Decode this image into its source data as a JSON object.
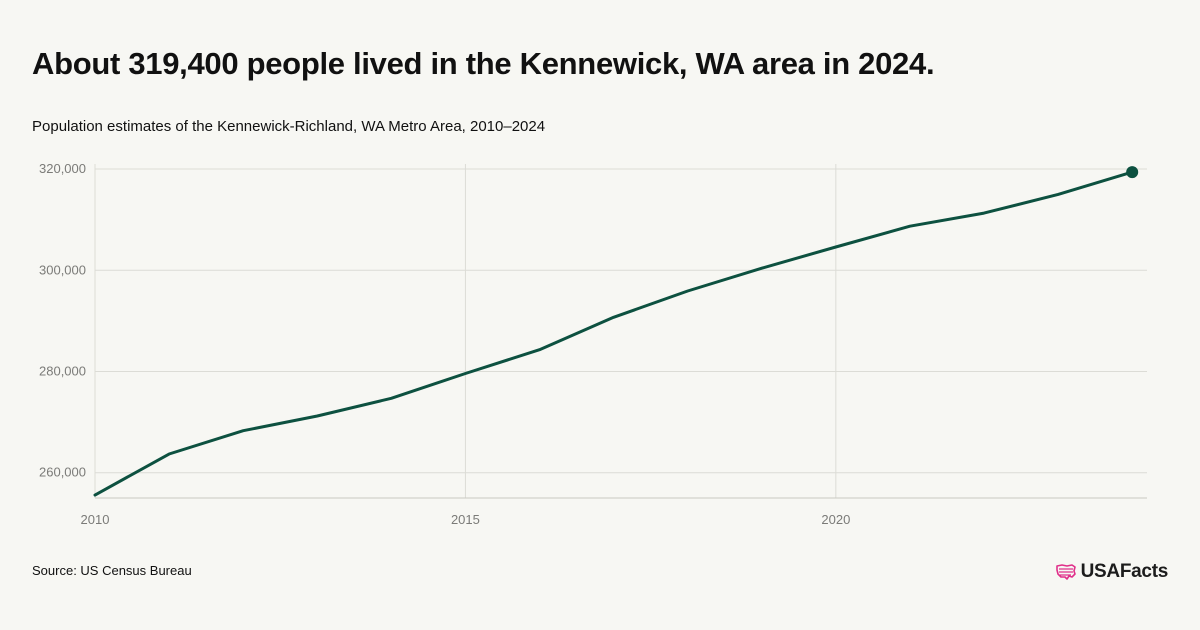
{
  "header": {
    "title": "About 319,400 people lived in the Kennewick, WA area in 2024.",
    "subtitle": "Population estimates of the Kennewick-Richland, WA Metro Area, 2010–2024"
  },
  "footer": {
    "source": "Source: US Census Bureau",
    "brand": "USAFacts"
  },
  "colors": {
    "line": "#0d5140",
    "grid": "#dcdcd6",
    "tick_text": "#7b7b78",
    "brand_mark": "#e0308a",
    "background": "#f7f7f3"
  },
  "chart_data": {
    "type": "line",
    "title": "About 319,400 people lived in the Kennewick, WA area in 2024.",
    "subtitle": "Population estimates of the Kennewick-Richland, WA Metro Area, 2010–2024",
    "xlabel": "",
    "ylabel": "",
    "x": [
      2010,
      2011,
      2012,
      2013,
      2014,
      2015,
      2016,
      2017,
      2018,
      2019,
      2020,
      2021,
      2022,
      2023,
      2024
    ],
    "series": [
      {
        "values": [
          255600,
          263700,
          268300,
          271200,
          274700,
          279600,
          284300,
          290700,
          295900,
          300400,
          304600,
          308700,
          311300,
          315000,
          319400
        ]
      }
    ],
    "xlim": [
      2010,
      2024.2
    ],
    "ylim": [
      255000,
      321000
    ],
    "x_ticks": [
      2010,
      2015,
      2020
    ],
    "x_tick_labels": [
      "2010",
      "2015",
      "2020"
    ],
    "y_ticks": [
      260000,
      280000,
      300000,
      320000
    ],
    "y_tick_labels": [
      "260,000",
      "280,000",
      "300,000",
      "320,000"
    ],
    "grid": true,
    "legend": "none",
    "end_marker": true
  }
}
